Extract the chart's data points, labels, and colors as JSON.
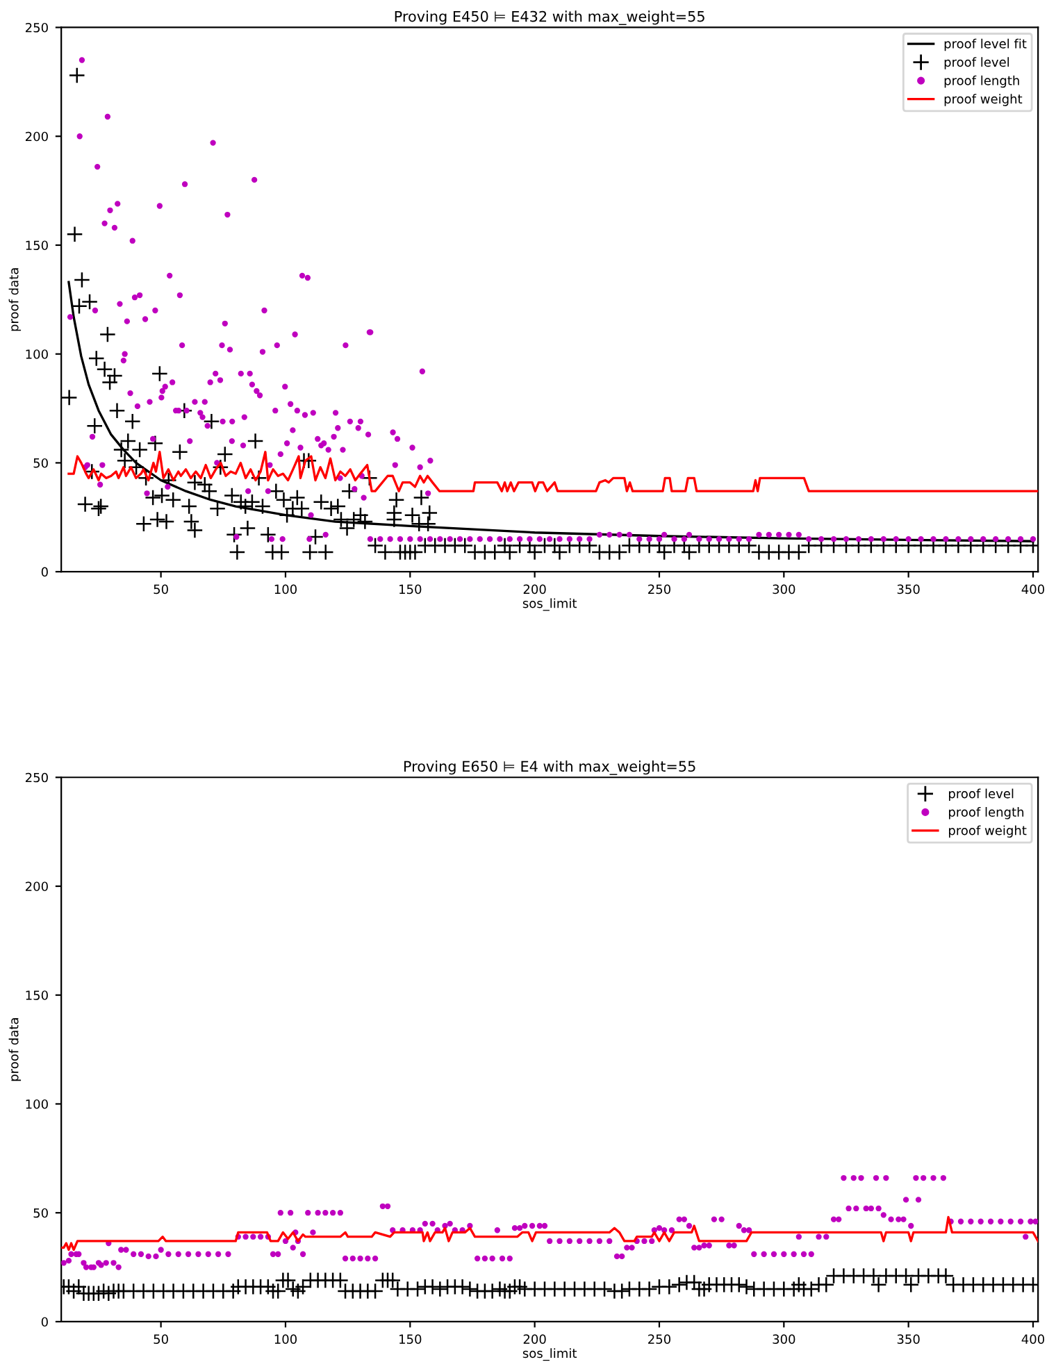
{
  "chart_data": [
    {
      "type": "scatter",
      "title": "Proving E450 ⊨ E432 with max_weight=55",
      "xlabel": "sos_limit",
      "ylabel": "proof data",
      "xlim": [
        10,
        402
      ],
      "ylim": [
        0,
        250
      ],
      "xticks": [
        50,
        100,
        150,
        200,
        250,
        300,
        350,
        400
      ],
      "yticks": [
        0,
        50,
        100,
        150,
        200,
        250
      ],
      "legend": "top right",
      "series": [
        {
          "name": "proof level fit",
          "type": "line",
          "color": "#000000",
          "marker": "none",
          "line_style": "solid",
          "x": [
            13,
            15,
            18,
            21,
            25,
            30,
            35,
            40,
            50,
            60,
            70,
            80,
            100,
            120,
            150,
            200,
            250,
            300,
            350,
            400
          ],
          "values": [
            133,
            117,
            99,
            86,
            74,
            63,
            56,
            50,
            42,
            37,
            33,
            30,
            26,
            23,
            21,
            18,
            16.4,
            15.3,
            14.6,
            14
          ]
        },
        {
          "name": "proof level",
          "color": "#000000",
          "marker": "cross",
          "x": [
            16.3,
            15.4,
            13.2,
            18.3,
            17.2,
            21.4,
            28.6,
            24.1,
            27.4,
            29.5,
            31.4,
            32.4,
            23.4,
            38.6,
            36.8,
            34.1,
            41.5,
            35.5,
            49.5,
            47.7,
            22.3,
            19.6,
            25,
            25.9,
            40.1,
            44,
            46.8,
            50.4,
            53.1,
            54.9,
            57.6,
            59.4,
            43.1,
            48.6,
            52.2,
            61.3,
            62.2,
            63.6,
            63.6,
            67.6,
            69.4,
            70.3,
            72.7,
            75.7,
            73.9,
            78.5,
            79.4,
            80.6,
            82.1,
            83.9,
            84.8,
            86.6,
            87.9,
            89.3,
            90.8,
            93,
            94.8,
            96.2,
            98.4,
            99.3,
            100.6,
            102.9,
            104.7,
            107.4,
            109.3,
            106.5,
            109.8,
            112,
            114.3,
            116.1,
            118.3,
            121,
            122.3,
            125.6,
            124.7,
            127.4,
            130.1,
            131.9,
            133.7,
            144.5,
            143.6,
            143.6,
            150.9,
            154.5,
            157.8,
            153.6,
            157.2,
            136,
            140,
            146,
            148,
            150,
            152,
            156,
            160,
            164,
            168,
            172,
            176,
            180,
            184,
            188,
            190,
            194,
            198,
            200,
            204,
            208,
            210,
            214,
            218,
            222,
            226,
            230,
            234,
            238,
            242,
            246,
            250,
            252,
            256,
            260,
            262,
            266,
            270,
            274,
            278,
            282,
            286,
            290,
            294,
            298,
            302,
            306,
            310,
            315,
            320,
            325,
            330,
            335,
            340,
            345,
            350,
            355,
            360,
            365,
            370,
            375,
            380,
            385,
            390,
            395,
            400
          ],
          "values": [
            228,
            155,
            80,
            134,
            122,
            124,
            109,
            98,
            93,
            87,
            90,
            74,
            67,
            69,
            60,
            56,
            56,
            51,
            91,
            59,
            46,
            31,
            29,
            30,
            48,
            43,
            34,
            35,
            42,
            33,
            55,
            74,
            22,
            24,
            23,
            30,
            23,
            19,
            41,
            40,
            37,
            69,
            29,
            54,
            48,
            35,
            17,
            9,
            32,
            30,
            20,
            32,
            60,
            43,
            30,
            17,
            9,
            37,
            9,
            33,
            26,
            29,
            34,
            51,
            51,
            29,
            9,
            16,
            32,
            9,
            29,
            30,
            24,
            37,
            20,
            24,
            26,
            23,
            43,
            33,
            27,
            24,
            26,
            34,
            27,
            22,
            22,
            12,
            9,
            9,
            9,
            9,
            9,
            12,
            12,
            12,
            12,
            12,
            9,
            9,
            9,
            12,
            9,
            12,
            12,
            9,
            12,
            12,
            9,
            12,
            12,
            12,
            9,
            9,
            9,
            12,
            12,
            12,
            12,
            9,
            12,
            12,
            9,
            12,
            12,
            12,
            12,
            12,
            12,
            9,
            9,
            9,
            9,
            9,
            12,
            12,
            12,
            12,
            12,
            12,
            12,
            12,
            12,
            12,
            12,
            12,
            12,
            12,
            12,
            12,
            12,
            12,
            12
          ]
        },
        {
          "name": "proof length",
          "color": "#bf00bf",
          "marker": "circle",
          "x": [
            18.3,
            17.4,
            28.6,
            24.5,
            29.6,
            32.6,
            27.4,
            31.4,
            38.6,
            49.5,
            59.6,
            70.9,
            76.7,
            87.5,
            13.6,
            33.5,
            36.4,
            39.5,
            41.5,
            43.7,
            47.7,
            53.5,
            57.6,
            106.7,
            108.9,
            91.5,
            103.8,
            58.5,
            75.7,
            74.5,
            77.7,
            90.8,
            96.6,
            124.1,
            134.1,
            23.6,
            35,
            35.5,
            71.9,
            73.8,
            69.8,
            82.1,
            85.7,
            86.6,
            88.4,
            89.7,
            99.8,
            54.6,
            51.7,
            50.6,
            56,
            57.1,
            60.3,
            63.6,
            67.6,
            65.8,
            66.7,
            68.7,
            74.8,
            78.6,
            83.5,
            95.9,
            102,
            104.7,
            107.8,
            111.1,
            120.1,
            125.9,
            130.1,
            129.2,
            133.2,
            121,
            119.4,
            112.9,
            114.3,
            115.4,
            117.2,
            123,
            102.9,
            100.6,
            98,
            106,
            61.6,
            45.5,
            40.6,
            37.7,
            50.2,
            83,
            78.5,
            22.5,
            20.5,
            19.6,
            26.5,
            25.6,
            46.8,
            44.4,
            52.7,
            93.7,
            93,
            85,
            131.4,
            130.6,
            127.7,
            121.9,
            116.1,
            110.2,
            94.4,
            98.8,
            109.6,
            80.3,
            72.5,
            143.1,
            144.9,
            150.9,
            144,
            154,
            158.1,
            157.2,
            154.9,
            133.7,
            134,
            138,
            142,
            146,
            150,
            154,
            158,
            162,
            166,
            170,
            174,
            178,
            182,
            186,
            190,
            194,
            198,
            202,
            206,
            210,
            214,
            218,
            222,
            226,
            230,
            234,
            238,
            242,
            246,
            250,
            252,
            256,
            260,
            262,
            266,
            270,
            274,
            278,
            282,
            286,
            290,
            294,
            298,
            302,
            306,
            310,
            315,
            320,
            325,
            330,
            335,
            340,
            345,
            350,
            355,
            360,
            365,
            370,
            375,
            380,
            385,
            390,
            395,
            400
          ],
          "values": [
            235,
            200,
            209,
            186,
            166,
            169,
            160,
            158,
            152,
            168,
            178,
            197,
            164,
            180,
            117,
            123,
            115,
            126,
            127,
            116,
            120,
            136,
            127,
            136,
            135,
            120,
            109,
            104,
            114,
            104,
            102,
            101,
            104,
            104,
            110,
            120,
            97,
            100,
            91,
            88,
            87,
            91,
            91,
            86,
            83,
            81,
            85,
            87,
            85,
            83,
            74,
            74,
            74,
            78,
            78,
            73,
            71,
            67,
            69,
            69,
            71,
            74,
            77,
            74,
            72,
            73,
            73,
            69,
            69,
            66,
            63,
            66,
            62,
            61,
            58,
            59,
            56,
            56,
            65,
            59,
            54,
            57,
            60,
            78,
            76,
            82,
            80,
            58,
            60,
            62,
            49,
            48,
            49,
            40,
            61,
            36,
            39,
            49,
            37,
            37,
            34,
            44,
            38,
            43,
            17,
            26,
            15,
            15,
            15,
            16,
            50,
            64,
            61,
            57,
            49,
            48,
            51,
            36,
            92,
            110,
            15,
            15,
            15,
            15,
            15,
            15,
            15,
            15,
            15,
            15,
            15,
            15,
            15,
            15,
            15,
            15,
            15,
            15,
            15,
            15,
            15,
            15,
            15,
            17,
            17,
            17,
            17,
            15,
            15,
            15,
            17,
            15,
            15,
            17,
            15,
            15,
            15,
            15,
            15,
            15,
            17,
            17,
            17,
            17,
            17,
            15,
            15,
            15,
            15,
            15,
            15,
            15,
            15,
            15,
            15,
            15,
            15,
            15,
            15,
            15,
            15,
            15,
            15,
            15
          ]
        },
        {
          "name": "proof weight",
          "type": "line",
          "color": "#ff0000",
          "marker": "none",
          "line_style": "solid",
          "x": [
            13,
            15,
            16.5,
            18,
            20,
            21,
            23,
            25,
            26,
            28,
            30,
            32,
            33,
            35,
            36,
            38,
            40,
            42,
            43,
            45,
            47,
            48,
            49.5,
            51,
            53,
            55,
            57,
            58,
            60,
            62,
            64,
            66,
            68,
            70,
            72,
            74,
            76,
            78,
            80,
            82,
            84,
            86,
            88,
            90,
            91.9,
            93,
            95,
            97,
            99,
            101,
            103,
            105.3,
            106,
            108,
            110.3,
            112,
            114,
            116,
            118,
            120,
            122,
            124,
            126,
            128,
            130,
            132.8,
            134.6,
            136,
            141,
            143,
            145.5,
            147,
            150,
            152,
            154,
            155.5,
            157,
            159,
            161.8,
            175.4,
            176,
            185,
            186.8,
            188,
            189,
            190.4,
            191.7,
            193.5,
            199,
            200.2,
            201.6,
            203.4,
            205,
            208,
            209.2,
            224.6,
            226,
            228.3,
            229.7,
            231.5,
            236,
            237,
            238.2,
            239.3,
            251.4,
            252.3,
            254.2,
            255,
            260.5,
            261.5,
            264,
            265,
            287.7,
            288.6,
            289.5,
            290.4,
            308.1,
            310,
            402
          ],
          "values": [
            45,
            45,
            53,
            50,
            45,
            43,
            47,
            42,
            45,
            43,
            44,
            46,
            43,
            48,
            44,
            48,
            43,
            45,
            47,
            42,
            50,
            46,
            55,
            43,
            47,
            42,
            46,
            44,
            47,
            43,
            46,
            43,
            49,
            43,
            47,
            50,
            44,
            46,
            45,
            50,
            43,
            47,
            42,
            46,
            55,
            42,
            47,
            44,
            45,
            42,
            47,
            53,
            43,
            51,
            53,
            42,
            48,
            43,
            52,
            42,
            46,
            44,
            47,
            42,
            45,
            49,
            37,
            37,
            44,
            44,
            37,
            41,
            41,
            39,
            44,
            41,
            44,
            41,
            37,
            37,
            41,
            41,
            37,
            41,
            37,
            41,
            37,
            41,
            41,
            37,
            41,
            41,
            37,
            41,
            37,
            37,
            41,
            42,
            41,
            43,
            43,
            37,
            41,
            37,
            37,
            43,
            43,
            37,
            37,
            43,
            43,
            37,
            37,
            42,
            37,
            43,
            43,
            37,
            37
          ]
        }
      ]
    },
    {
      "type": "scatter",
      "title": "Proving E650 ⊨ E4 with max_weight=55",
      "xlabel": "sos_limit",
      "ylabel": "proof data",
      "xlim": [
        10,
        402
      ],
      "ylim": [
        0,
        250
      ],
      "xticks": [
        50,
        100,
        150,
        200,
        250,
        300,
        350,
        400
      ],
      "yticks": [
        0,
        50,
        100,
        150,
        200,
        250
      ],
      "legend": "top right",
      "series": [
        {
          "name": "proof level",
          "color": "#000000",
          "marker": "cross",
          "x": [
            11,
            13,
            15,
            17,
            19,
            21,
            23,
            25,
            27,
            29,
            31,
            33,
            35,
            39,
            43,
            47,
            51,
            55,
            59,
            63,
            67,
            71,
            75,
            79,
            81,
            84,
            87,
            90,
            93,
            95,
            97,
            99,
            101,
            103,
            105,
            107,
            110,
            113,
            116,
            119,
            122,
            124,
            127,
            130,
            133,
            136,
            139,
            141,
            143,
            145,
            149,
            153,
            156,
            159,
            162,
            165,
            168,
            171,
            174,
            177,
            180,
            183,
            186,
            188,
            190,
            192,
            194,
            196,
            200,
            204,
            208,
            212,
            216,
            220,
            224,
            228,
            232,
            235,
            238,
            242,
            246,
            250,
            254,
            258,
            261,
            264,
            266,
            268,
            270,
            273,
            276,
            279,
            282,
            285,
            288,
            292,
            296,
            300,
            304,
            306,
            308,
            311,
            314,
            317,
            320,
            324,
            328,
            332,
            336,
            338,
            341,
            345,
            349,
            351,
            354,
            358,
            362,
            365,
            368,
            372,
            376,
            380,
            384,
            388,
            392,
            396,
            400
          ],
          "values": [
            16,
            16,
            14,
            16,
            13,
            13,
            13,
            13,
            14,
            13,
            14,
            14,
            14,
            14,
            14,
            14,
            14,
            14,
            14,
            14,
            14,
            14,
            14,
            14,
            16,
            16,
            16,
            16,
            16,
            14,
            14,
            19,
            19,
            15,
            14,
            16,
            19,
            19,
            19,
            19,
            19,
            14,
            14,
            14,
            14,
            14,
            19,
            19,
            19,
            15,
            15,
            15,
            16,
            16,
            15,
            16,
            16,
            16,
            15,
            14,
            14,
            14,
            15,
            14,
            14,
            16,
            16,
            15,
            15,
            15,
            15,
            15,
            15,
            15,
            15,
            15,
            14,
            14,
            15,
            15,
            15,
            16,
            16,
            17,
            18,
            18,
            15,
            15,
            17,
            17,
            17,
            17,
            17,
            16,
            15,
            15,
            15,
            15,
            15,
            17,
            15,
            15,
            17,
            17,
            21,
            21,
            21,
            21,
            21,
            17,
            21,
            21,
            21,
            17,
            21,
            21,
            21,
            21,
            17,
            17,
            17,
            17,
            17,
            17,
            17,
            17,
            17
          ]
        },
        {
          "name": "proof length",
          "color": "#bf00bf",
          "marker": "circle",
          "x": [
            11,
            13,
            14,
            16,
            17,
            19,
            20,
            22,
            23,
            25,
            26,
            28,
            29,
            31,
            33,
            34,
            36,
            39,
            42,
            45,
            48,
            50,
            53,
            57,
            61,
            65,
            69,
            73,
            77,
            81,
            84,
            87,
            90,
            93,
            95,
            97,
            98,
            100,
            102,
            103,
            104,
            105,
            107,
            109,
            111,
            113,
            116,
            119,
            122,
            124,
            127,
            130,
            133,
            136,
            139,
            141,
            143,
            147,
            151,
            154,
            156,
            159,
            161,
            164,
            166,
            168,
            171,
            174,
            177,
            180,
            183,
            185,
            187,
            190,
            192,
            194,
            196,
            199,
            202,
            204,
            206,
            210,
            214,
            218,
            222,
            226,
            230,
            233,
            235,
            237,
            239,
            241,
            244,
            247,
            248,
            250,
            252,
            255,
            258,
            260,
            262,
            264,
            266,
            268,
            270,
            272,
            275,
            278,
            280,
            282,
            284,
            286,
            288,
            292,
            296,
            300,
            304,
            306,
            308,
            311,
            314,
            317,
            320,
            322,
            324,
            326,
            328,
            329,
            331,
            333,
            335,
            337,
            338,
            340,
            341,
            343,
            346,
            348,
            349,
            351,
            353,
            354,
            356,
            360,
            364,
            367,
            371,
            375,
            379,
            383,
            387,
            391,
            395,
            397,
            399,
            401
          ],
          "values": [
            27,
            28,
            31,
            31,
            31,
            27,
            25,
            25,
            25,
            27,
            26,
            27,
            36,
            27,
            25,
            33,
            33,
            31,
            31,
            30,
            30,
            33,
            31,
            31,
            31,
            31,
            31,
            31,
            31,
            39,
            39,
            39,
            39,
            39,
            31,
            31,
            50,
            37,
            50,
            34,
            41,
            37,
            31,
            50,
            41,
            50,
            50,
            50,
            50,
            29,
            29,
            29,
            29,
            29,
            53,
            53,
            42,
            42,
            42,
            42,
            45,
            45,
            42,
            44,
            45,
            42,
            42,
            44,
            29,
            29,
            29,
            42,
            29,
            29,
            43,
            43,
            44,
            44,
            44,
            44,
            37,
            37,
            37,
            37,
            37,
            37,
            37,
            30,
            30,
            34,
            34,
            37,
            37,
            37,
            42,
            43,
            42,
            42,
            47,
            47,
            44,
            34,
            34,
            35,
            35,
            47,
            47,
            35,
            35,
            44,
            42,
            42,
            31,
            31,
            31,
            31,
            31,
            39,
            31,
            31,
            39,
            39,
            47,
            47,
            66,
            52,
            66,
            52,
            66,
            52,
            52,
            66,
            52,
            49,
            66,
            47,
            47,
            47,
            56,
            44,
            66,
            56,
            66,
            66,
            66,
            46,
            46,
            46,
            46,
            46,
            46,
            46,
            46,
            39,
            46,
            46
          ]
        },
        {
          "name": "proof weight",
          "type": "line",
          "color": "#ff0000",
          "marker": "none",
          "line_style": "solid",
          "x": [
            10.3,
            11,
            12,
            13,
            14,
            15,
            16.5,
            49,
            50.7,
            52,
            80,
            81,
            92.6,
            94,
            97,
            99,
            101,
            103,
            105,
            107,
            108,
            122,
            124,
            125,
            134.6,
            136,
            142,
            143.6,
            155,
            155.5,
            157,
            158,
            160,
            163,
            164,
            165.5,
            167,
            172,
            174,
            176,
            193,
            195,
            197.5,
            199,
            200.5,
            230,
            232,
            234,
            236,
            240,
            241,
            247,
            248,
            250,
            252,
            254,
            256,
            263,
            264,
            266,
            285,
            287,
            339,
            340,
            341,
            350,
            351,
            352,
            365,
            366,
            367.5,
            400,
            402
          ],
          "values": [
            34,
            34,
            36,
            33,
            36,
            33,
            37,
            37,
            39,
            37,
            37,
            41,
            41,
            37,
            37,
            41,
            38,
            41,
            37,
            40,
            39,
            39,
            41,
            39,
            39,
            41,
            39,
            41,
            41,
            37,
            41,
            37,
            41,
            41,
            43,
            37,
            41,
            41,
            43,
            39,
            39,
            41,
            41,
            37,
            41,
            41,
            43,
            41,
            37,
            37,
            39,
            39,
            41,
            37,
            41,
            37,
            41,
            41,
            44,
            37,
            37,
            41,
            41,
            37,
            41,
            41,
            37,
            41,
            41,
            48,
            41,
            41,
            37
          ]
        }
      ]
    }
  ]
}
